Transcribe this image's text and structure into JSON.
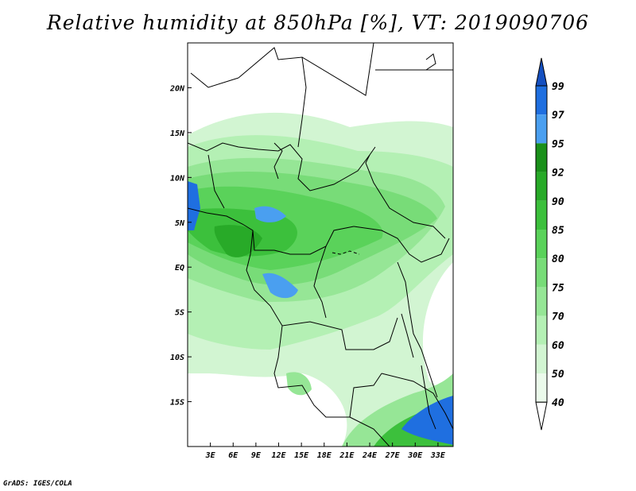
{
  "title": "Relative humidity at 850hPa [%], VT: 2019090706",
  "credit": "GrADS: IGES/COLA",
  "map": {
    "lon_range": [
      0,
      35
    ],
    "lat_range": [
      -20,
      25
    ],
    "lat_ticks": [
      {
        "value": 20,
        "label": "20N"
      },
      {
        "value": 15,
        "label": "15N"
      },
      {
        "value": 10,
        "label": "10N"
      },
      {
        "value": 5,
        "label": "5N"
      },
      {
        "value": 0,
        "label": "EQ"
      },
      {
        "value": -5,
        "label": "5S"
      },
      {
        "value": -10,
        "label": "10S"
      },
      {
        "value": -15,
        "label": "15S"
      }
    ],
    "lon_ticks": [
      {
        "value": 3,
        "label": "3E"
      },
      {
        "value": 6,
        "label": "6E"
      },
      {
        "value": 9,
        "label": "9E"
      },
      {
        "value": 12,
        "label": "12E"
      },
      {
        "value": 15,
        "label": "15E"
      },
      {
        "value": 18,
        "label": "18E"
      },
      {
        "value": 21,
        "label": "21E"
      },
      {
        "value": 24,
        "label": "24E"
      },
      {
        "value": 27,
        "label": "27E"
      },
      {
        "value": 30,
        "label": "30E"
      },
      {
        "value": 33,
        "label": "33E"
      }
    ]
  },
  "colorbar": {
    "levels": [
      "40",
      "50",
      "60",
      "70",
      "75",
      "80",
      "85",
      "90",
      "92",
      "95",
      "97",
      "99"
    ],
    "colors": [
      "#ffffff",
      "#ebfaeb",
      "#d2f5d2",
      "#b4f0b4",
      "#96e696",
      "#78dc78",
      "#5ad25a",
      "#3cc03c",
      "#28aa28",
      "#1a901a",
      "#4a9ff0",
      "#1f6fe0",
      "#1550c0"
    ]
  }
}
